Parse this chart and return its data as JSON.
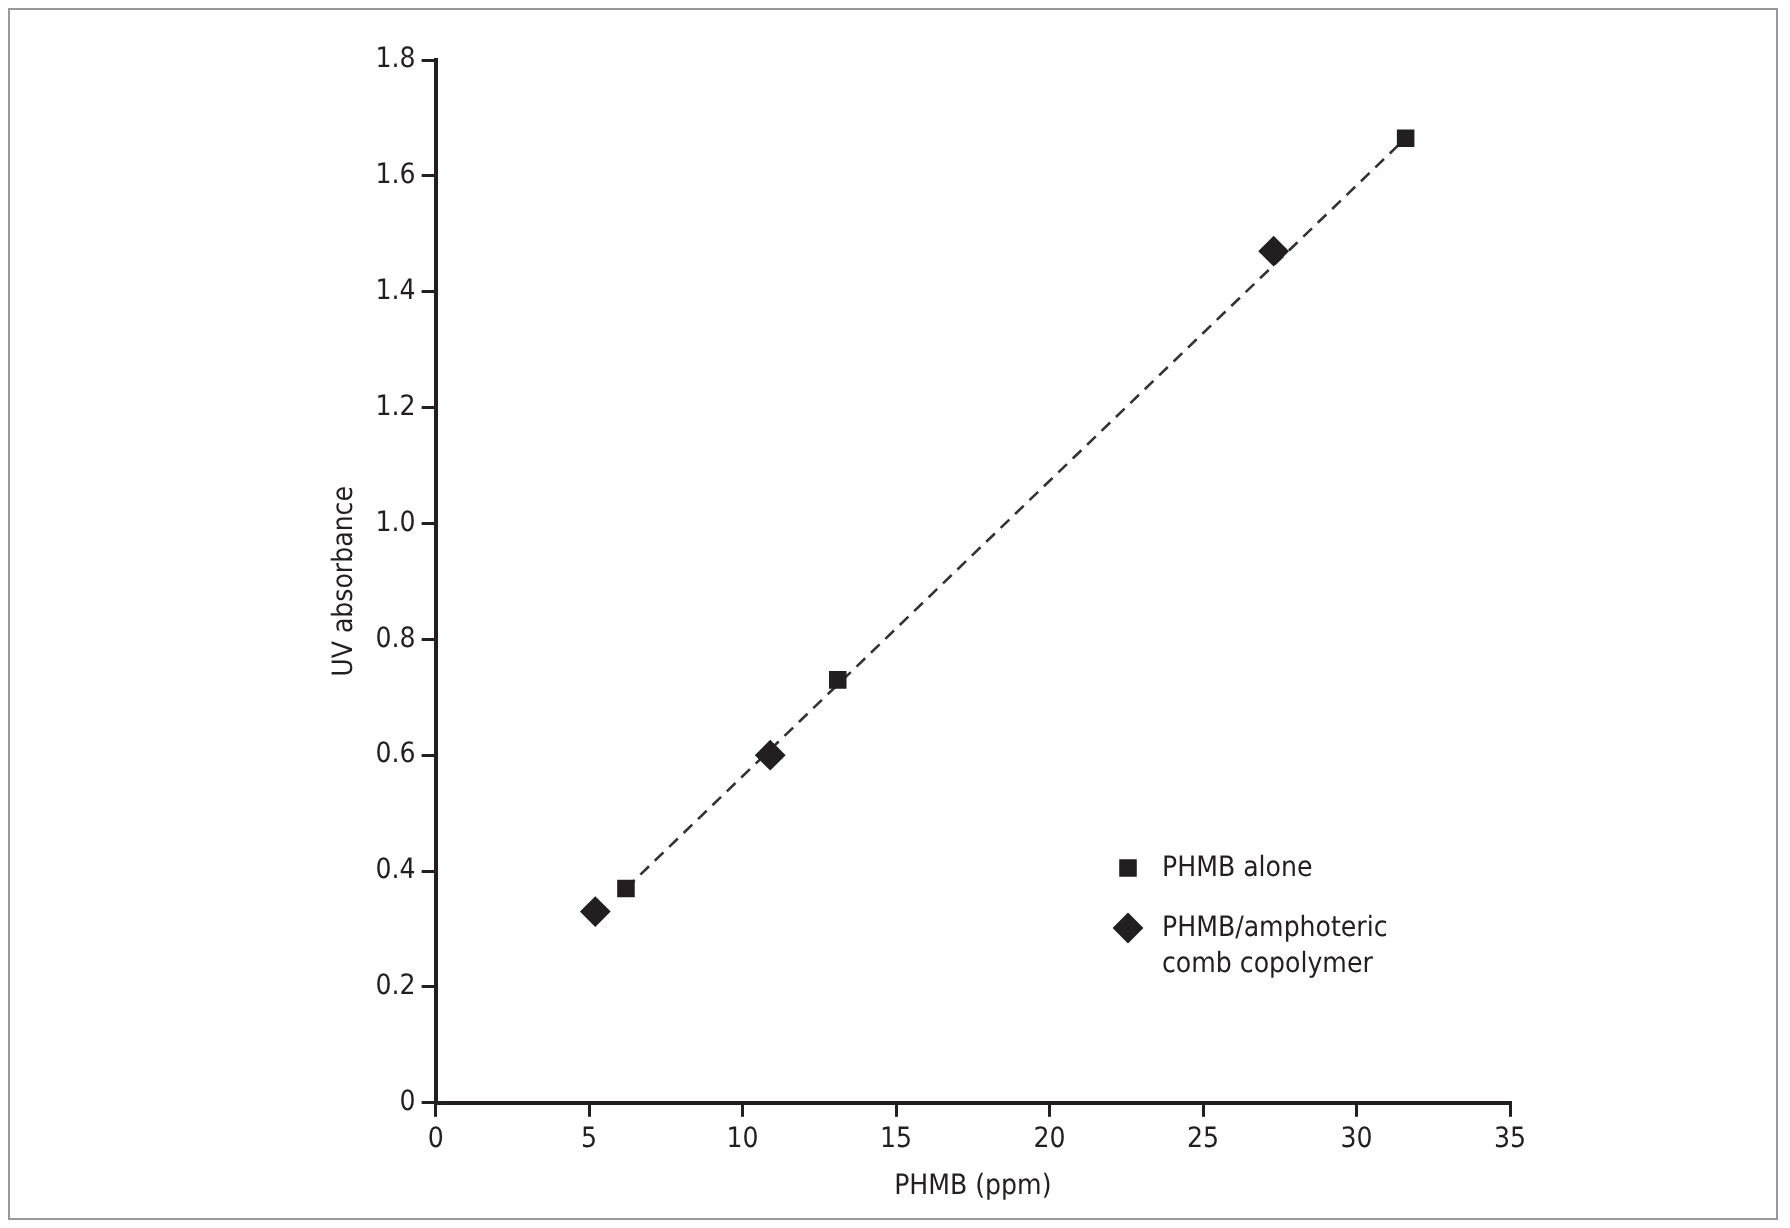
{
  "chart_data": {
    "type": "scatter",
    "xlabel": "PHMB (ppm)",
    "ylabel": "UV absorbance",
    "xlim": [
      0,
      35
    ],
    "xticks": [
      0,
      5,
      10,
      15,
      20,
      25,
      30,
      35
    ],
    "ylim": [
      0,
      1.8
    ],
    "yticks": [
      0,
      {
        "value": 0.2,
        "label": "0.2"
      },
      {
        "value": 0.4,
        "label": "0.4"
      },
      {
        "value": 0.6,
        "label": "0.6"
      },
      {
        "value": 0.8,
        "label": "0.8"
      },
      {
        "value": 1.0,
        "label": "1.0"
      },
      {
        "value": 1.2,
        "label": "1.2"
      },
      {
        "value": 1.4,
        "label": "1.4"
      },
      {
        "value": 1.6,
        "label": "1.6"
      },
      {
        "value": 1.8,
        "label": "1.8"
      }
    ],
    "grid": false,
    "legend": "bottom right",
    "series": [
      {
        "name": "PHMB alone",
        "color": "#231f20",
        "marker": "square",
        "x": [
          6.2,
          13.1,
          31.6
        ],
        "values": [
          0.37,
          0.73,
          1.665
        ]
      },
      {
        "name": "PHMB/amphoteric comb copolymer",
        "color": "#231f20",
        "marker": "diamond",
        "x": [
          5.2,
          10.9,
          27.3
        ],
        "values": [
          0.33,
          0.6,
          1.47
        ]
      },
      {
        "type": "line",
        "color": "#333333",
        "line_style": "dashed",
        "marker": "none",
        "x": [
          6.2,
          31.6
        ],
        "values": [
          0.37,
          1.665
        ]
      }
    ]
  }
}
